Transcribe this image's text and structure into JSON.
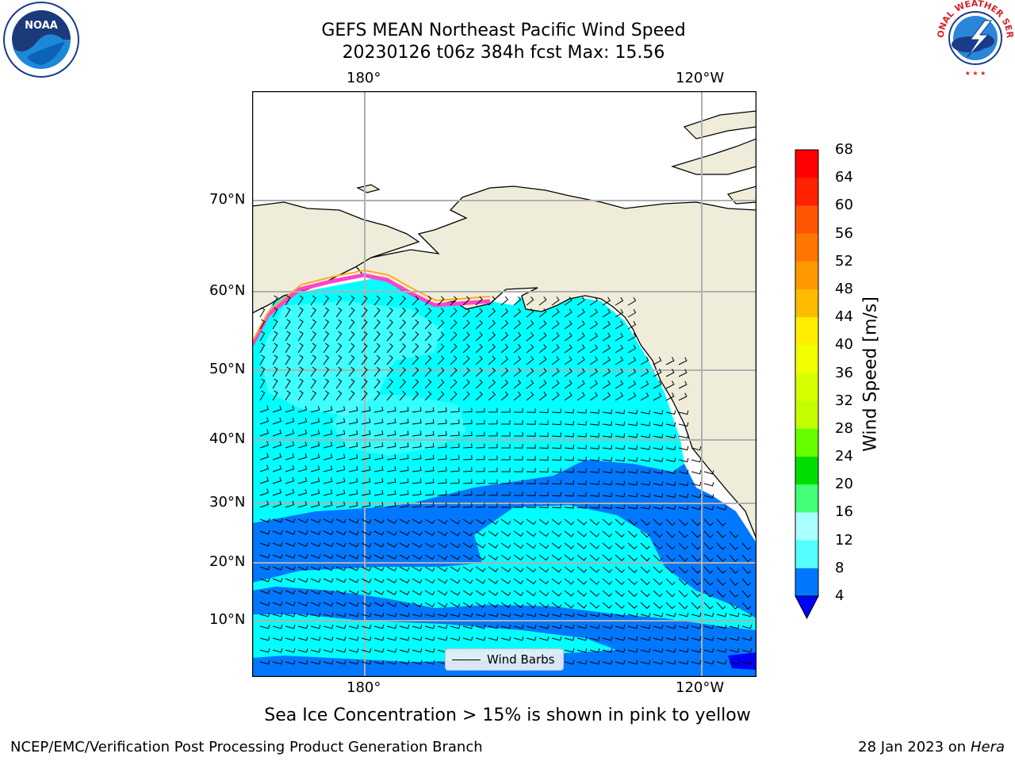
{
  "title_line1": "GEFS MEAN Northeast Pacific Wind Speed",
  "title_line2": "20230126 t06z 384h fcst   Max: 15.56",
  "lon_labels": [
    "180°",
    "120°W"
  ],
  "lat_labels": [
    "70°N",
    "60°N",
    "50°N",
    "40°N",
    "30°N",
    "20°N",
    "10°N"
  ],
  "colorbar": {
    "title": "Wind Speed [m/s]",
    "ticks": [
      "68",
      "64",
      "60",
      "56",
      "52",
      "48",
      "44",
      "40",
      "36",
      "32",
      "28",
      "24",
      "20",
      "16",
      "12",
      "8",
      "4"
    ],
    "colors": [
      "#ff0000",
      "#ff2a00",
      "#ff5500",
      "#ff7f00",
      "#ffa500",
      "#ffcc00",
      "#ffff00",
      "#ffff00",
      "#e6ff00",
      "#ccff00",
      "#99ff00",
      "#66ff00",
      "#00ee00",
      "#55ff77",
      "#aaffff",
      "#55ffff",
      "#00ffff",
      "#0077ff",
      "#0000ff"
    ]
  },
  "legend_label": "Wind Barbs",
  "caption": "Sea Ice Concentration > 15% is shown in pink to yellow",
  "credit": "NCEP/EMC/Verification Post Processing Product Generation Branch",
  "date": "28 Jan 2023 on ",
  "host": "Hera",
  "logos": {
    "left": "NOAA",
    "right": "NATIONAL WEATHER SERVICE"
  },
  "map_colors": {
    "land": "#efedda",
    "wind_0_4": "#0000ff",
    "wind_4_8": "#0077ff",
    "wind_8_12": "#00ffff",
    "wind_12_16": "#55ffff",
    "ice": "#ff44cc"
  }
}
